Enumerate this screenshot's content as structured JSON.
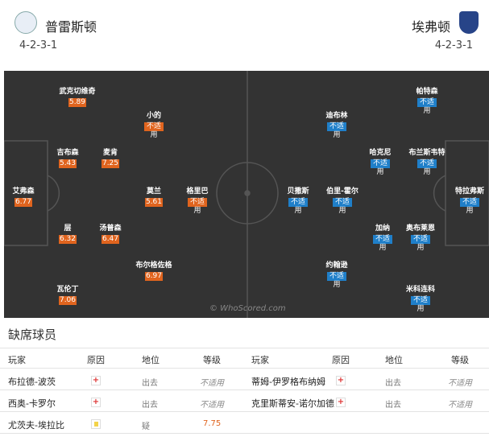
{
  "header": {
    "home": {
      "name": "普雷斯顿",
      "formation": "4-2-3-1"
    },
    "away": {
      "name": "埃弗顿",
      "formation": "4-2-3-1"
    }
  },
  "pitch": {
    "watermark": "© WhoScored.com",
    "home": [
      {
        "name": "武克切维奇",
        "rating": 5.89
      },
      {
        "name": "吉布森",
        "rating": 5.43
      },
      {
        "name": "麦肯",
        "rating": 7.25
      },
      {
        "name": "艾弗森",
        "rating": 6.77
      },
      {
        "name": "层",
        "rating": 6.32
      },
      {
        "name": "汤普森",
        "rating": 6.47
      },
      {
        "name": "瓦伦丁",
        "rating": 7.06
      },
      {
        "name": "小的",
        "rating": "不适用"
      },
      {
        "name": "莫兰",
        "rating": 5.61
      },
      {
        "name": "格里巴",
        "rating": "不适用"
      },
      {
        "name": "布尔格佐格",
        "rating": 6.97
      }
    ],
    "away": [
      {
        "name": "帕特森",
        "rating": "不适用"
      },
      {
        "name": "迪布林",
        "rating": "不适用"
      },
      {
        "name": "哈克尼",
        "rating": "不适用"
      },
      {
        "name": "布兰斯韦特",
        "rating": "不适用"
      },
      {
        "name": "特拉弗斯",
        "rating": "不适用"
      },
      {
        "name": "贝撒斯",
        "rating": "不适用"
      },
      {
        "name": "伯里-霍尔",
        "rating": "不适用"
      },
      {
        "name": "加纳",
        "rating": "不适用"
      },
      {
        "name": "奥布莱恩",
        "rating": "不适用"
      },
      {
        "name": "约翰逊",
        "rating": "不适用"
      },
      {
        "name": "米科连科",
        "rating": "不适用"
      }
    ]
  },
  "absent": {
    "title": "缺席球员",
    "columns": [
      "玩家",
      "原因",
      "地位",
      "等级"
    ],
    "home": [
      {
        "name": "布拉德-波茨",
        "status": "出去",
        "rating": "不适用"
      },
      {
        "name": "西奥-卡罗尔",
        "status": "出去",
        "rating": "不适用"
      },
      {
        "name": "尤茨夫-埃拉比",
        "status": "疑",
        "rating": 7.75
      }
    ],
    "away": [
      {
        "name": "蒂姆-伊罗格布纳姆",
        "status": "出去",
        "rating": "不适用"
      },
      {
        "name": "克里斯蒂安-诺尔加德",
        "status": "出去",
        "rating": "不适用"
      }
    ]
  }
}
